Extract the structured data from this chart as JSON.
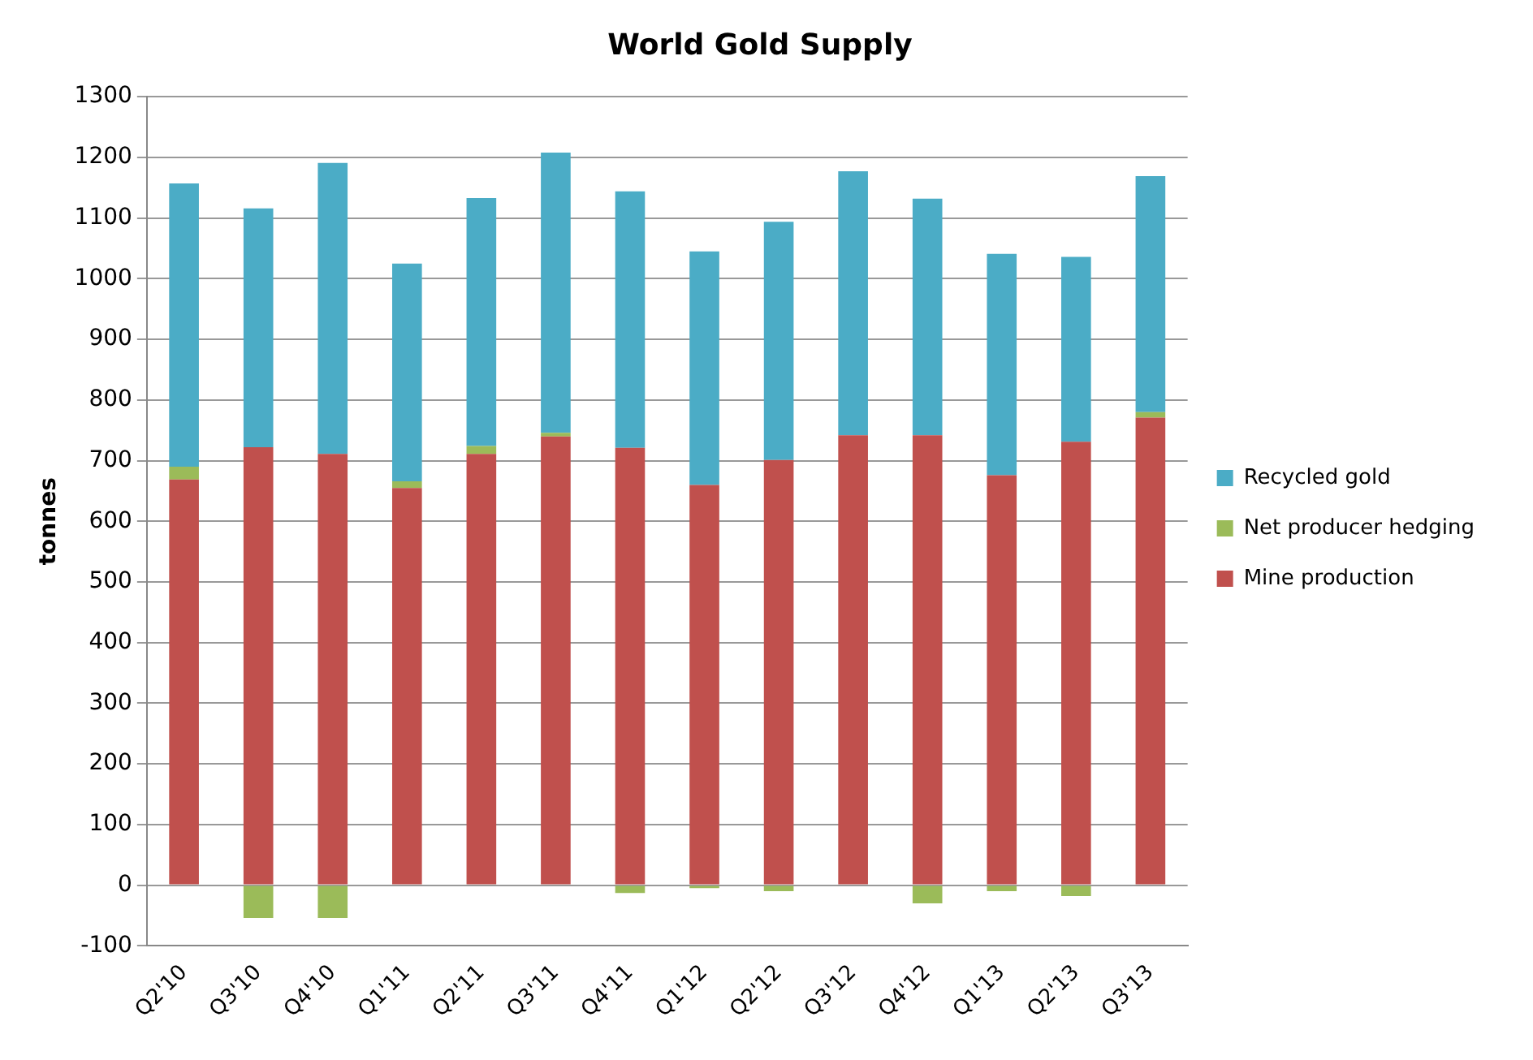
{
  "chart_data": {
    "type": "bar",
    "title": "World Gold Supply",
    "ylabel": "tonnes",
    "stacked": true,
    "legend": "right",
    "grid": "y",
    "categories": [
      "Q2'10",
      "Q3'10",
      "Q4'10",
      "Q1'11",
      "Q2'11",
      "Q3'11",
      "Q4'11",
      "Q1'12",
      "Q2'12",
      "Q3'12",
      "Q4'12",
      "Q1'13",
      "Q2'13",
      "Q3'13"
    ],
    "ylim": [
      -100,
      1300
    ],
    "yticks": [
      -100,
      0,
      100,
      200,
      300,
      400,
      500,
      600,
      700,
      800,
      900,
      1000,
      1100,
      1200,
      1300
    ],
    "series": [
      {
        "name": "Mine production",
        "color": "#c0504d",
        "values": [
          669,
          722,
          711,
          655,
          711,
          740,
          721,
          660,
          701,
          742,
          742,
          676,
          731,
          771
        ]
      },
      {
        "name": "Net producer hedging",
        "color": "#9bbb59",
        "values": [
          21,
          -54,
          -54,
          11,
          13,
          6,
          -13,
          -5,
          -10,
          0,
          -30,
          -10,
          -18,
          9
        ]
      },
      {
        "name": "Recycled gold",
        "color": "#4bacc6",
        "values": [
          467,
          394,
          480,
          359,
          409,
          462,
          423,
          385,
          393,
          435,
          390,
          365,
          305,
          389
        ]
      }
    ]
  }
}
